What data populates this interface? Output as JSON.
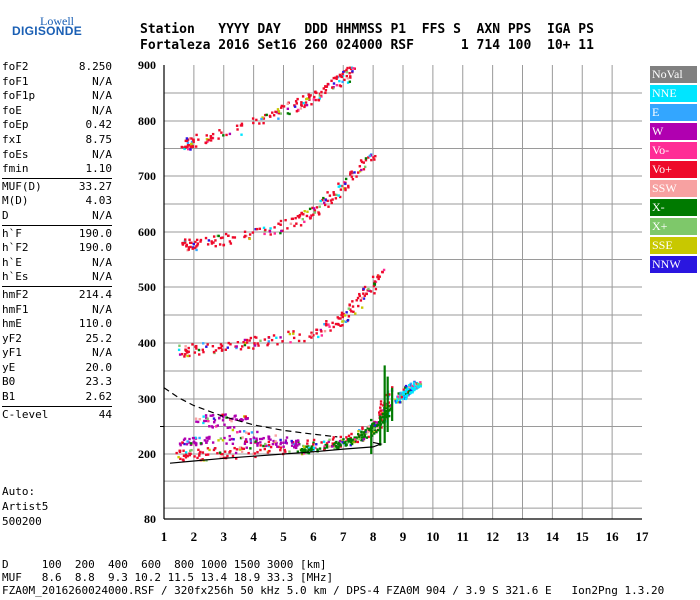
{
  "logo": {
    "line1": "Lowell",
    "line2": "DIGISONDE"
  },
  "header": {
    "line1": "Station   YYYY DAY   DDD HHMMSS P1  FFS S  AXN PPS  IGA PS",
    "line2": "Fortaleza 2016 Set16 260 024000 RSF      1 714 100  10+ 11"
  },
  "params": [
    {
      "label": "foF2",
      "value": "8.250"
    },
    {
      "label": "foF1",
      "value": "N/A"
    },
    {
      "label": "foF1p",
      "value": "N/A"
    },
    {
      "label": "foE",
      "value": "N/A"
    },
    {
      "label": "foEp",
      "value": "0.42"
    },
    {
      "label": "fxI",
      "value": "8.75"
    },
    {
      "label": "foEs",
      "value": "N/A"
    },
    {
      "label": "fmin",
      "value": "1.10"
    },
    {
      "label": "MUF(D)",
      "value": "33.27"
    },
    {
      "label": "M(D)",
      "value": "4.03"
    },
    {
      "label": "D",
      "value": "N/A"
    },
    {
      "label": "h`F",
      "value": "190.0"
    },
    {
      "label": "h`F2",
      "value": "190.0"
    },
    {
      "label": "h`E",
      "value": "N/A"
    },
    {
      "label": "h`Es",
      "value": "N/A"
    },
    {
      "label": "hmF2",
      "value": "214.4"
    },
    {
      "label": "hmF1",
      "value": "N/A"
    },
    {
      "label": "hmE",
      "value": "110.0"
    },
    {
      "label": "yF2",
      "value": "25.2"
    },
    {
      "label": "yF1",
      "value": "N/A"
    },
    {
      "label": "yE",
      "value": "20.0"
    },
    {
      "label": "B0",
      "value": "23.3"
    },
    {
      "label": "B1",
      "value": "2.62"
    },
    {
      "label": "C-level",
      "value": "44"
    }
  ],
  "auto": {
    "line1": "Auto:",
    "line2": "Artist5",
    "line3": "500200"
  },
  "legend": [
    {
      "name": "NoVal",
      "color": "#808080"
    },
    {
      "name": "NNE",
      "color": "#00e5ff"
    },
    {
      "name": "E",
      "color": "#33a6ff"
    },
    {
      "name": "W",
      "color": "#b000b0"
    },
    {
      "name": "Vo-",
      "color": "#ff2d96"
    },
    {
      "name": "Vo+",
      "color": "#ee0a2a"
    },
    {
      "name": "SSW",
      "color": "#f7a1a1"
    },
    {
      "name": "X-",
      "color": "#007a00"
    },
    {
      "name": "X+",
      "color": "#7ec86a"
    },
    {
      "name": "SSE",
      "color": "#c8c800"
    },
    {
      "name": "NNW",
      "color": "#2a16e0"
    }
  ],
  "bottom": {
    "line1": "D     100  200  400  600  800 1000 1500 3000 [km]",
    "line2": "MUF   8.6  8.8  9.3 10.2 11.5 13.4 18.9 33.3 [MHz]",
    "line3": "FZA0M_2016260024000.RSF / 320fx256h 50 kHz 5.0 km / DPS-4 FZA0M 904 / 3.9 S 321.6 E   Ion2Png 1.3.20"
  },
  "chart_data": {
    "type": "scatter",
    "title": "",
    "xlabel": "",
    "ylabel": "",
    "xlim": [
      1,
      17
    ],
    "ylim": [
      80,
      900
    ],
    "x_ticks": [
      1,
      2,
      3,
      4,
      5,
      6,
      7,
      8,
      9,
      10,
      11,
      12,
      13,
      14,
      15,
      16,
      17
    ],
    "y_ticks": [
      80,
      200,
      300,
      400,
      500,
      600,
      700,
      800,
      900
    ],
    "y_grid_extra": [
      250
    ],
    "grid": true,
    "legend_position": "right",
    "traces": [
      {
        "name": "F-trace 1st hop",
        "color": "#ee0a2a",
        "points": [
          [
            1.4,
            198
          ],
          [
            2,
            200
          ],
          [
            3,
            203
          ],
          [
            4,
            207
          ],
          [
            5,
            212
          ],
          [
            6,
            218
          ],
          [
            7,
            226
          ],
          [
            7.6,
            238
          ],
          [
            8,
            255
          ],
          [
            8.3,
            280
          ],
          [
            8.5,
            320
          ]
        ]
      },
      {
        "name": "F-trace 2nd hop",
        "color": "#ee0a2a",
        "points": [
          [
            1.5,
            387
          ],
          [
            2,
            390
          ],
          [
            3,
            396
          ],
          [
            4,
            402
          ],
          [
            5,
            410
          ],
          [
            6,
            420
          ],
          [
            6.5,
            432
          ],
          [
            7,
            450
          ],
          [
            7.5,
            475
          ],
          [
            8,
            505
          ],
          [
            8.3,
            530
          ]
        ]
      },
      {
        "name": "F-trace 3rd hop",
        "color": "#ee0a2a",
        "points": [
          [
            1.5,
            577
          ],
          [
            2,
            580
          ],
          [
            3,
            588
          ],
          [
            4,
            598
          ],
          [
            5,
            612
          ],
          [
            5.5,
            625
          ],
          [
            6,
            640
          ],
          [
            6.5,
            660
          ],
          [
            7,
            685
          ],
          [
            7.5,
            715
          ],
          [
            8,
            745
          ]
        ]
      },
      {
        "name": "F-trace 4th hop",
        "color": "#ee0a2a",
        "points": [
          [
            1.6,
            756
          ],
          [
            2,
            765
          ],
          [
            3,
            780
          ],
          [
            4,
            798
          ],
          [
            5,
            820
          ],
          [
            5.5,
            832
          ],
          [
            6,
            845
          ],
          [
            6.5,
            862
          ],
          [
            7,
            880
          ],
          [
            7.3,
            895
          ]
        ]
      },
      {
        "name": "W cluster",
        "color": "#b000b0",
        "points": [
          [
            1.5,
            222
          ],
          [
            2,
            225
          ],
          [
            3,
            228
          ],
          [
            4,
            225
          ],
          [
            4.8,
            222
          ],
          [
            5.5,
            220
          ],
          [
            2,
            265
          ],
          [
            3,
            268
          ],
          [
            4,
            266
          ]
        ]
      },
      {
        "name": "X- trace",
        "color": "#007a00",
        "points": [
          [
            5.5,
            208
          ],
          [
            6,
            212
          ],
          [
            6.5,
            216
          ],
          [
            7,
            222
          ],
          [
            7.5,
            232
          ],
          [
            8,
            248
          ],
          [
            8.3,
            262
          ],
          [
            8.5,
            290
          ]
        ]
      },
      {
        "name": "NNE cluster",
        "color": "#00e5ff",
        "points": [
          [
            8.8,
            300
          ],
          [
            9,
            310
          ],
          [
            9.2,
            320
          ],
          [
            9.5,
            328
          ]
        ]
      }
    ],
    "profile_solid": [
      [
        1.2,
        183
      ],
      [
        2,
        187
      ],
      [
        3,
        192
      ],
      [
        4,
        196
      ],
      [
        5,
        200
      ],
      [
        6,
        204
      ],
      [
        7,
        209
      ],
      [
        8,
        213
      ],
      [
        8.25,
        218
      ],
      [
        8,
        221
      ]
    ],
    "profile_dashed": [
      [
        1,
        320
      ],
      [
        1.5,
        302
      ],
      [
        2,
        288
      ],
      [
        3,
        268
      ],
      [
        4,
        253
      ],
      [
        5,
        243
      ],
      [
        6,
        236
      ],
      [
        6.8,
        231
      ]
    ]
  }
}
